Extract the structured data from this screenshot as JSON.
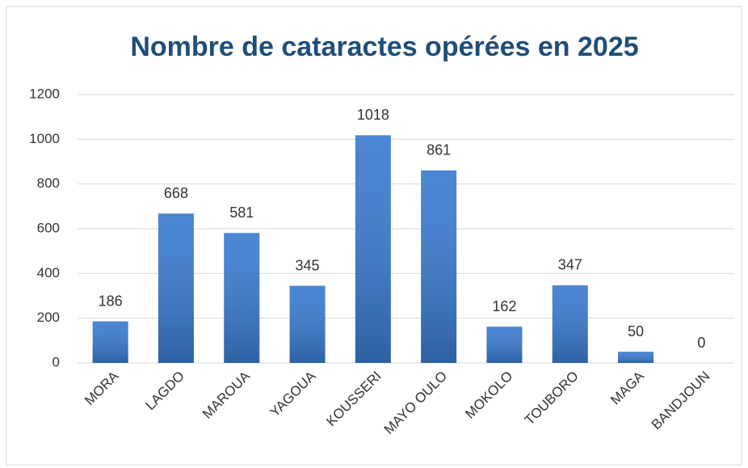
{
  "chart_data": {
    "type": "bar",
    "title": "Nombre de cataractes opérées en  2025",
    "categories": [
      "MORA",
      "LAGDO",
      "MAROUA",
      "YAGOUA",
      "KOUSSERI",
      "MAYO OULO",
      "MOKOLO",
      "TOUBORO",
      "MAGA",
      "BANDJOUN"
    ],
    "values": [
      186,
      668,
      581,
      345,
      1018,
      861,
      162,
      347,
      50,
      0
    ],
    "color": "#3b7bd0",
    "ylim": [
      0,
      1200
    ],
    "yticks": [
      0,
      200,
      400,
      600,
      800,
      1000,
      1200
    ],
    "grid": true
  }
}
